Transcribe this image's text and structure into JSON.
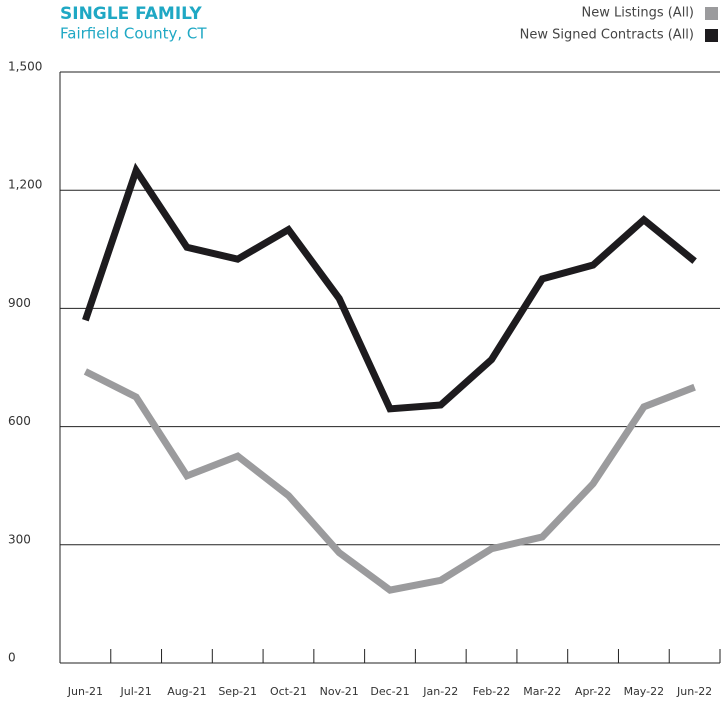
{
  "chart_data": {
    "type": "line",
    "title": "SINGLE FAMILY",
    "subtitle": "Fairfield County, CT",
    "categories": [
      "Jun-21",
      "Jul-21",
      "Aug-21",
      "Sep-21",
      "Oct-21",
      "Nov-21",
      "Dec-21",
      "Jan-22",
      "Feb-22",
      "Mar-22",
      "Apr-22",
      "May-22",
      "Jun-22"
    ],
    "series": [
      {
        "name": "New Listings (All)",
        "color": "#9b9b9d",
        "values": [
          740,
          675,
          475,
          525,
          425,
          280,
          185,
          210,
          290,
          320,
          455,
          650,
          700
        ]
      },
      {
        "name": "New Signed Contracts (All)",
        "color": "#1d1b1e",
        "values": [
          870,
          1250,
          1055,
          1025,
          1100,
          925,
          645,
          655,
          770,
          975,
          1010,
          1125,
          1020
        ]
      }
    ],
    "ylim": [
      0,
      1500
    ],
    "yticks": [
      0,
      300,
      600,
      900,
      {
        "value": 1200,
        "label": "1,200"
      },
      {
        "value": 1500,
        "label": "1,500"
      }
    ],
    "grid": true,
    "legend": "top-right"
  }
}
